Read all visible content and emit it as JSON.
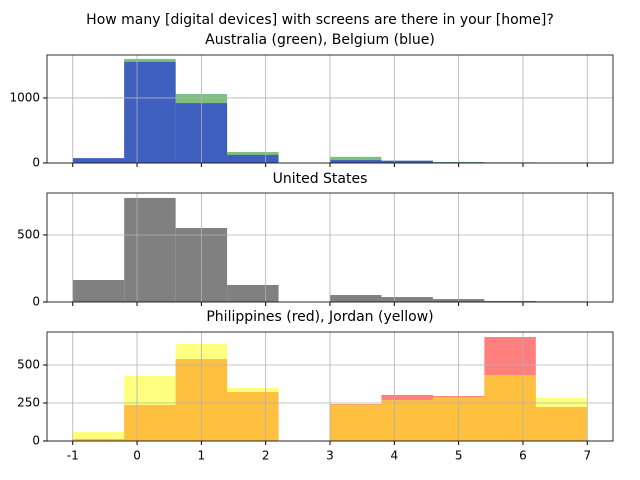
{
  "chart_data": [
    {
      "type": "histogram",
      "title": "How many [digital devices] with screens are there in your [home]?",
      "subtitle": "Australia (green), Belgium (blue)",
      "bins": [
        -1,
        -0.2,
        0.6,
        1.4,
        2.2,
        3,
        3.8,
        4.6,
        5.4,
        6.2,
        7
      ],
      "series": [
        {
          "color": "#80bf80",
          "values": [
            70,
            1600,
            1060,
            170,
            0,
            95,
            35,
            15,
            10,
            0
          ]
        },
        {
          "color": "#3f5fbf",
          "values": [
            75,
            1555,
            920,
            125,
            0,
            45,
            35,
            10,
            5,
            0
          ]
        }
      ],
      "xlim": [
        -1.4,
        7.4
      ],
      "xticks": [
        -1,
        0,
        1,
        2,
        3,
        4,
        5,
        6,
        7
      ],
      "ylim": [
        0,
        1660
      ],
      "yticks": [
        0,
        1000
      ],
      "grid": true,
      "xtick_labels": false
    },
    {
      "type": "histogram",
      "title": "United States",
      "bins": [
        -1,
        -0.2,
        0.6,
        1.4,
        2.2,
        3,
        3.8,
        4.6,
        5.4,
        6.2,
        7
      ],
      "series": [
        {
          "color": "#808080",
          "values": [
            164,
            776,
            552,
            127,
            0,
            52,
            37,
            22,
            8,
            5
          ]
        }
      ],
      "xlim": [
        -1.4,
        7.4
      ],
      "xticks": [
        -1,
        0,
        1,
        2,
        3,
        4,
        5,
        6,
        7
      ],
      "ylim": [
        0,
        813
      ],
      "yticks": [
        0,
        500
      ],
      "grid": true,
      "xtick_labels": false
    },
    {
      "type": "histogram",
      "title": "Philippines (red), Jordan (yellow)",
      "bins": [
        -1,
        -0.2,
        0.6,
        1.4,
        2.2,
        3,
        3.8,
        4.6,
        5.4,
        6.2,
        7
      ],
      "series": [
        {
          "color": "#ff0000",
          "values": [
            13,
            237,
            539,
            322,
            0,
            243,
            303,
            296,
            684,
            224
          ]
        },
        {
          "color": "#ffff00",
          "values": [
            60,
            428,
            638,
            349,
            0,
            240,
            270,
            290,
            434,
            283
          ]
        }
      ],
      "xlim": [
        -1.4,
        7.4
      ],
      "xticks": [
        -1,
        0,
        1,
        2,
        3,
        4,
        5,
        6,
        7
      ],
      "ylim": [
        0,
        717
      ],
      "yticks": [
        0,
        250,
        500
      ],
      "grid": true,
      "xtick_labels": true
    }
  ]
}
